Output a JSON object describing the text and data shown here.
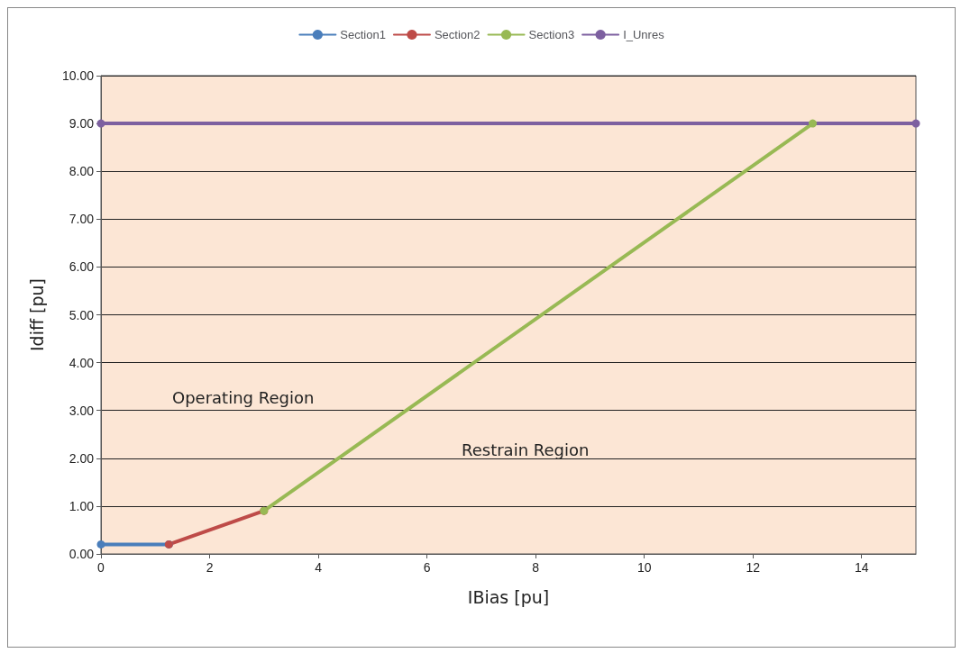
{
  "chart_data": {
    "type": "line",
    "xlabel": "IBias [pu]",
    "ylabel": "Idiff [pu]",
    "series": [
      {
        "name": "Section1",
        "color": "#4a7ebb",
        "x": [
          0,
          1.25
        ],
        "values": [
          0.2,
          0.2
        ]
      },
      {
        "name": "Section2",
        "color": "#be4b48",
        "x": [
          1.25,
          3
        ],
        "values": [
          0.2,
          0.9
        ]
      },
      {
        "name": "Section3",
        "color": "#98b954",
        "x": [
          3,
          13.1
        ],
        "values": [
          0.9,
          9
        ]
      },
      {
        "name": "I_Unres",
        "color": "#7d60a0",
        "x": [
          0,
          15
        ],
        "values": [
          9,
          9
        ]
      }
    ],
    "xlim": [
      0,
      15
    ],
    "xticks": [
      0,
      2,
      4,
      6,
      8,
      10,
      12,
      14
    ],
    "ylim": [
      0,
      10
    ],
    "yticks": [
      {
        "value": 0,
        "label": "0.00"
      },
      {
        "value": 1,
        "label": "1.00"
      },
      {
        "value": 2,
        "label": "2.00"
      },
      {
        "value": 3,
        "label": "3.00"
      },
      {
        "value": 4,
        "label": "4.00"
      },
      {
        "value": 5,
        "label": "5.00"
      },
      {
        "value": 6,
        "label": "6.00"
      },
      {
        "value": 7,
        "label": "7.00"
      },
      {
        "value": 8,
        "label": "8.00"
      },
      {
        "value": 9,
        "label": "9.00"
      },
      {
        "value": 10,
        "label": "10.00"
      }
    ],
    "annotations": [
      "Operating Region",
      "Restrain Region"
    ],
    "grid": "y",
    "legend": "top",
    "marker": "circle",
    "line_style": "solid"
  }
}
